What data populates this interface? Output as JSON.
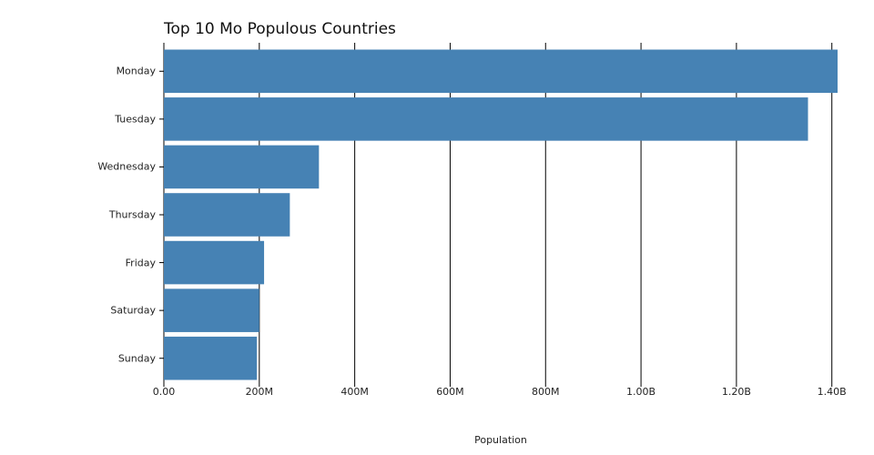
{
  "chart_data": {
    "type": "bar",
    "orientation": "horizontal",
    "title": "Top 10 Mo Populous Countries",
    "xlabel": "Population",
    "ylabel": "",
    "categories": [
      "Monday",
      "Tuesday",
      "Wednesday",
      "Thursday",
      "Friday",
      "Saturday",
      "Sunday"
    ],
    "values": [
      1412000000,
      1350000000,
      325000000,
      264000000,
      210000000,
      200000000,
      195000000
    ],
    "xlim": [
      0,
      1412000000
    ],
    "xticks": [
      0,
      200000000,
      400000000,
      600000000,
      800000000,
      1000000000,
      1200000000,
      1400000000
    ],
    "xtick_labels": [
      "0.00",
      "200M",
      "400M",
      "600M",
      "800M",
      "1.00B",
      "1.20B",
      "1.40B"
    ],
    "grid": "vertical",
    "bar_color": "#4682b4",
    "grid_color": "#000000"
  }
}
